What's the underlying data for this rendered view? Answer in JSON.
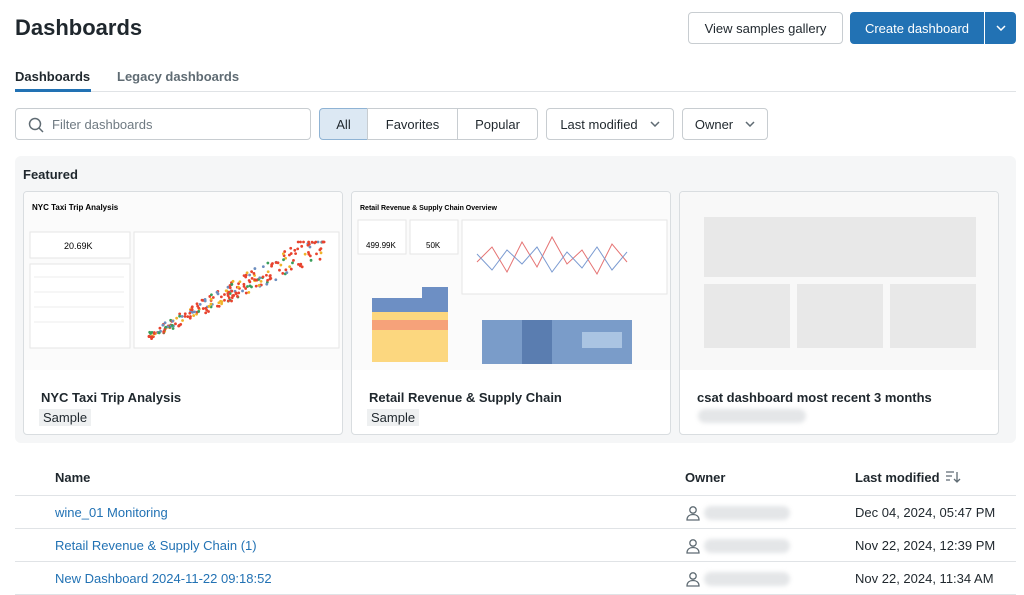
{
  "header": {
    "title": "Dashboards",
    "gallery_button": "View samples gallery",
    "create_button": "Create dashboard"
  },
  "tabs": [
    "Dashboards",
    "Legacy dashboards"
  ],
  "filters": {
    "search_placeholder": "Filter dashboards",
    "segments": [
      "All",
      "Favorites",
      "Popular"
    ],
    "dropdowns": [
      "Last modified",
      "Owner"
    ]
  },
  "featured": {
    "title": "Featured",
    "cards": [
      {
        "name": "NYC Taxi Trip Analysis",
        "tag": "Sample",
        "preview_title": "NYC Taxi Trip Analysis",
        "preview_kpis": [
          "20.69K"
        ]
      },
      {
        "name": "Retail Revenue & Supply Chain",
        "tag": "Sample",
        "preview_title": "Retail Revenue & Supply Chain Overview",
        "preview_kpis": [
          "499.99K",
          "50K"
        ]
      },
      {
        "name": "csat dashboard most recent 3 months"
      }
    ]
  },
  "table": {
    "columns": [
      "Name",
      "Owner",
      "Last modified"
    ],
    "rows": [
      {
        "name": "wine_01 Monitoring",
        "modified": "Dec 04, 2024, 05:47 PM"
      },
      {
        "name": "Retail Revenue & Supply Chain (1)",
        "modified": "Nov 22, 2024, 12:39 PM"
      },
      {
        "name": "New Dashboard 2024-11-22 09:18:52",
        "modified": "Nov 22, 2024, 11:34 AM"
      }
    ]
  }
}
